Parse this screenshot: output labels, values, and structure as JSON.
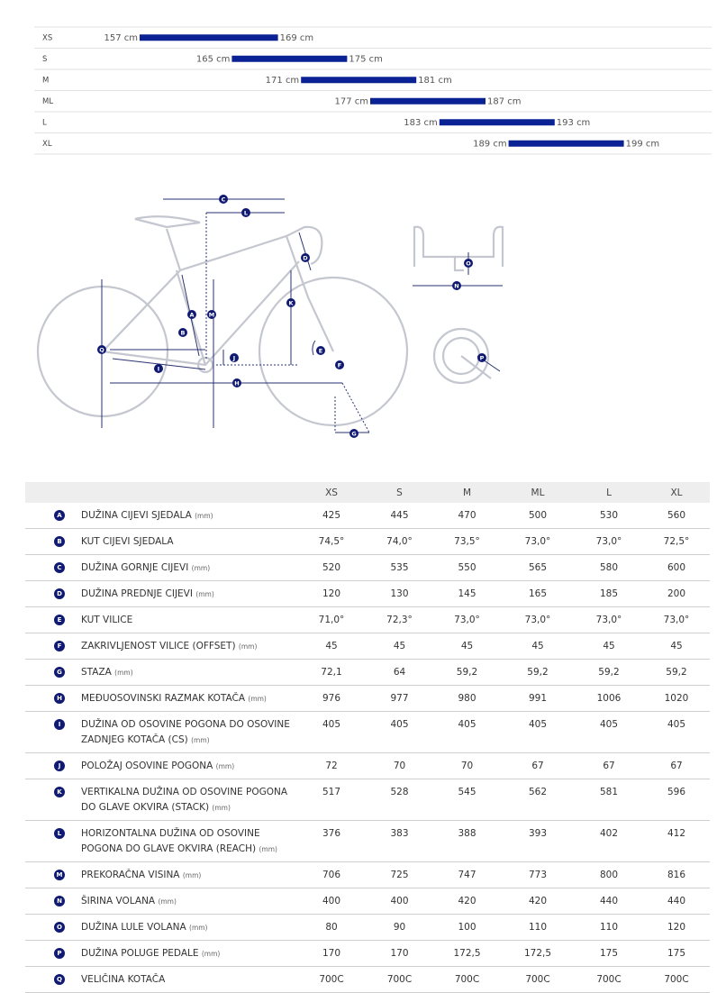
{
  "size_chart": {
    "rows": [
      {
        "size": "XS",
        "min": {
          "value": 157,
          "label": "157 cm"
        },
        "max": {
          "value": 169,
          "label": "169 cm"
        }
      },
      {
        "size": "S",
        "min": {
          "value": 165,
          "label": "165 cm"
        },
        "max": {
          "value": 175,
          "label": "175 cm"
        }
      },
      {
        "size": "M",
        "min": {
          "value": 171,
          "label": "171 cm"
        },
        "max": {
          "value": 181,
          "label": "181 cm"
        }
      },
      {
        "size": "ML",
        "min": {
          "value": 177,
          "label": "177 cm"
        },
        "max": {
          "value": 187,
          "label": "187 cm"
        }
      },
      {
        "size": "L",
        "min": {
          "value": 183,
          "label": "183 cm"
        },
        "max": {
          "value": 193,
          "label": "193 cm"
        }
      },
      {
        "size": "XL",
        "min": {
          "value": 189,
          "label": "189 cm"
        },
        "max": {
          "value": 199,
          "label": "199 cm"
        }
      }
    ]
  },
  "diagram": {
    "markers": [
      "C",
      "L",
      "D",
      "K",
      "A",
      "M",
      "B",
      "Q",
      "J",
      "E",
      "I",
      "F",
      "H",
      "G",
      "O",
      "N",
      "P"
    ]
  },
  "table": {
    "sizes": [
      "XS",
      "S",
      "M",
      "ML",
      "L",
      "XL"
    ],
    "rows": [
      {
        "key": "A",
        "name": "DUŽINA CIJEVI SJEDALA",
        "unit": "(mm)",
        "values": [
          425,
          445,
          470,
          500,
          530,
          560
        ]
      },
      {
        "key": "B",
        "name": "KUT CIJEVI SJEDALA",
        "values": [
          "74,5°",
          "74,0°",
          "73,5°",
          "73,0°",
          "73,0°",
          "72,5°"
        ]
      },
      {
        "key": "C",
        "name": "DUŽINA GORNJE CIJEVI",
        "unit": "(mm)",
        "values": [
          520,
          535,
          550,
          565,
          580,
          600
        ]
      },
      {
        "key": "D",
        "name": "DUŽINA PREDNJE CIJEVI",
        "unit": "(mm)",
        "values": [
          120,
          130,
          145,
          165,
          185,
          200
        ]
      },
      {
        "key": "E",
        "name": "KUT VILICE",
        "values": [
          "71,0°",
          "72,3°",
          "73,0°",
          "73,0°",
          "73,0°",
          "73,0°"
        ]
      },
      {
        "key": "F",
        "name": "ZAKRIVLJENOST VILICE (OFFSET)",
        "unit": "(mm)",
        "values": [
          45,
          45,
          45,
          45,
          45,
          45
        ]
      },
      {
        "key": "G",
        "name": "STAZA",
        "unit": "(mm)",
        "values": [
          "72,1",
          64,
          "59,2",
          "59,2",
          "59,2",
          "59,2"
        ]
      },
      {
        "key": "H",
        "name": "MEĐUOSOVINSKI RAZMAK KOTAČA",
        "unit": "(mm)",
        "values": [
          976,
          977,
          980,
          991,
          1006,
          1020
        ]
      },
      {
        "key": "I",
        "name": "DUŽINA OD OSOVINE POGONA DO OSOVINE ZADNJEG KOTAČA (CS)",
        "unit": "(mm)",
        "values": [
          405,
          405,
          405,
          405,
          405,
          405
        ]
      },
      {
        "key": "J",
        "name": "POLOŽAJ OSOVINE POGONA",
        "unit": "(mm)",
        "values": [
          72,
          70,
          70,
          67,
          67,
          67
        ]
      },
      {
        "key": "K",
        "name": "VERTIKALNA DUŽINA OD OSOVINE POGONA DO GLAVE OKVIRA (STACK)",
        "unit": "(mm)",
        "values": [
          517,
          528,
          545,
          562,
          581,
          596
        ]
      },
      {
        "key": "L",
        "name": "HORIZONTALNA DUŽINA OD OSOVINE POGONA DO GLAVE OKVIRA (REACH)",
        "unit": "(mm)",
        "values": [
          376,
          383,
          388,
          393,
          402,
          412
        ]
      },
      {
        "key": "M",
        "name": "PREKORAČNA VISINA",
        "unit": "(mm)",
        "values": [
          706,
          725,
          747,
          773,
          800,
          816
        ]
      },
      {
        "key": "N",
        "name": "ŠIRINA VOLANA",
        "unit": "(mm)",
        "values": [
          400,
          400,
          420,
          420,
          440,
          440
        ]
      },
      {
        "key": "O",
        "name": "DUŽINA LULE VOLANA",
        "unit": "(mm)",
        "values": [
          80,
          90,
          100,
          110,
          110,
          120
        ]
      },
      {
        "key": "P",
        "name": "DUŽINA POLUGE PEDALE",
        "unit": "(mm)",
        "values": [
          170,
          170,
          "172,5",
          "172,5",
          175,
          175
        ]
      },
      {
        "key": "Q",
        "name": "VELIČINA KOTAČA",
        "values": [
          "700C",
          "700C",
          "700C",
          "700C",
          "700C",
          "700C"
        ]
      }
    ]
  }
}
